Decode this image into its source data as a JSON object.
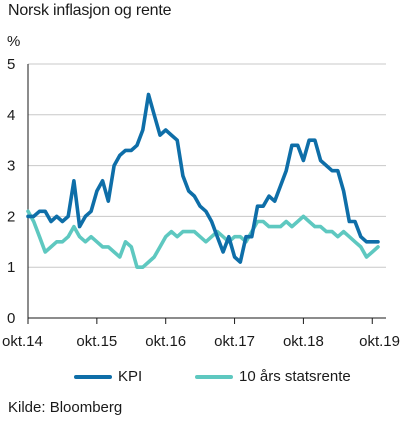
{
  "chart_data": {
    "type": "line",
    "title": "Norsk inflasjon og rente",
    "ylabel": "%",
    "ylim": [
      0,
      5
    ],
    "yticks": [
      "0",
      "1",
      "2",
      "3",
      "4",
      "5"
    ],
    "xticks": [
      "okt.14",
      "okt.15",
      "okt.16",
      "okt.17",
      "okt.18",
      "okt.19"
    ],
    "xrange": [
      "2014-10",
      "2019-11"
    ],
    "grid": "horizontal",
    "legend_position": "bottom",
    "source": "Kilde: Bloomberg",
    "series": [
      {
        "name": "KPI",
        "color": "#0e6ea8",
        "x": [
          "2014-10",
          "2014-11",
          "2014-12",
          "2015-01",
          "2015-02",
          "2015-03",
          "2015-04",
          "2015-05",
          "2015-06",
          "2015-07",
          "2015-08",
          "2015-09",
          "2015-10",
          "2015-11",
          "2015-12",
          "2016-01",
          "2016-02",
          "2016-03",
          "2016-04",
          "2016-05",
          "2016-06",
          "2016-07",
          "2016-08",
          "2016-09",
          "2016-10",
          "2016-11",
          "2016-12",
          "2017-01",
          "2017-02",
          "2017-03",
          "2017-04",
          "2017-05",
          "2017-06",
          "2017-07",
          "2017-08",
          "2017-09",
          "2017-10",
          "2017-11",
          "2017-12",
          "2018-01",
          "2018-02",
          "2018-03",
          "2018-04",
          "2018-05",
          "2018-06",
          "2018-07",
          "2018-08",
          "2018-09",
          "2018-10",
          "2018-11",
          "2018-12",
          "2019-01",
          "2019-02",
          "2019-03",
          "2019-04",
          "2019-05",
          "2019-06",
          "2019-07",
          "2019-08",
          "2019-09",
          "2019-10",
          "2019-11"
        ],
        "values": [
          2.0,
          2.0,
          2.1,
          2.1,
          1.9,
          2.0,
          1.9,
          2.0,
          2.7,
          1.8,
          2.0,
          2.1,
          2.5,
          2.7,
          2.3,
          3.0,
          3.2,
          3.3,
          3.3,
          3.4,
          3.7,
          4.4,
          4.0,
          3.6,
          3.7,
          3.6,
          3.5,
          2.8,
          2.5,
          2.4,
          2.2,
          2.1,
          1.9,
          1.6,
          1.3,
          1.6,
          1.2,
          1.1,
          1.6,
          1.6,
          2.2,
          2.2,
          2.4,
          2.3,
          2.6,
          2.9,
          3.4,
          3.4,
          3.1,
          3.5,
          3.5,
          3.1,
          3.0,
          2.9,
          2.9,
          2.5,
          1.9,
          1.9,
          1.6,
          1.5,
          1.5,
          1.5
        ]
      },
      {
        "name": "10 års statsrente",
        "color": "#5ec8c0",
        "x": [
          "2014-10",
          "2014-11",
          "2014-12",
          "2015-01",
          "2015-02",
          "2015-03",
          "2015-04",
          "2015-05",
          "2015-06",
          "2015-07",
          "2015-08",
          "2015-09",
          "2015-10",
          "2015-11",
          "2015-12",
          "2016-01",
          "2016-02",
          "2016-03",
          "2016-04",
          "2016-05",
          "2016-06",
          "2016-07",
          "2016-08",
          "2016-09",
          "2016-10",
          "2016-11",
          "2016-12",
          "2017-01",
          "2017-02",
          "2017-03",
          "2017-04",
          "2017-05",
          "2017-06",
          "2017-07",
          "2017-08",
          "2017-09",
          "2017-10",
          "2017-11",
          "2017-12",
          "2018-01",
          "2018-02",
          "2018-03",
          "2018-04",
          "2018-05",
          "2018-06",
          "2018-07",
          "2018-08",
          "2018-09",
          "2018-10",
          "2018-11",
          "2018-12",
          "2019-01",
          "2019-02",
          "2019-03",
          "2019-04",
          "2019-05",
          "2019-06",
          "2019-07",
          "2019-08",
          "2019-09",
          "2019-10",
          "2019-11"
        ],
        "values": [
          2.1,
          1.9,
          1.6,
          1.3,
          1.4,
          1.5,
          1.5,
          1.6,
          1.8,
          1.6,
          1.5,
          1.6,
          1.5,
          1.4,
          1.4,
          1.3,
          1.2,
          1.5,
          1.4,
          1.0,
          1.0,
          1.1,
          1.2,
          1.4,
          1.6,
          1.7,
          1.6,
          1.7,
          1.7,
          1.7,
          1.6,
          1.5,
          1.6,
          1.7,
          1.6,
          1.5,
          1.6,
          1.6,
          1.5,
          1.7,
          1.9,
          1.9,
          1.8,
          1.8,
          1.8,
          1.9,
          1.8,
          1.9,
          2.0,
          1.9,
          1.8,
          1.8,
          1.7,
          1.7,
          1.6,
          1.7,
          1.6,
          1.5,
          1.4,
          1.2,
          1.3,
          1.4
        ]
      }
    ]
  }
}
